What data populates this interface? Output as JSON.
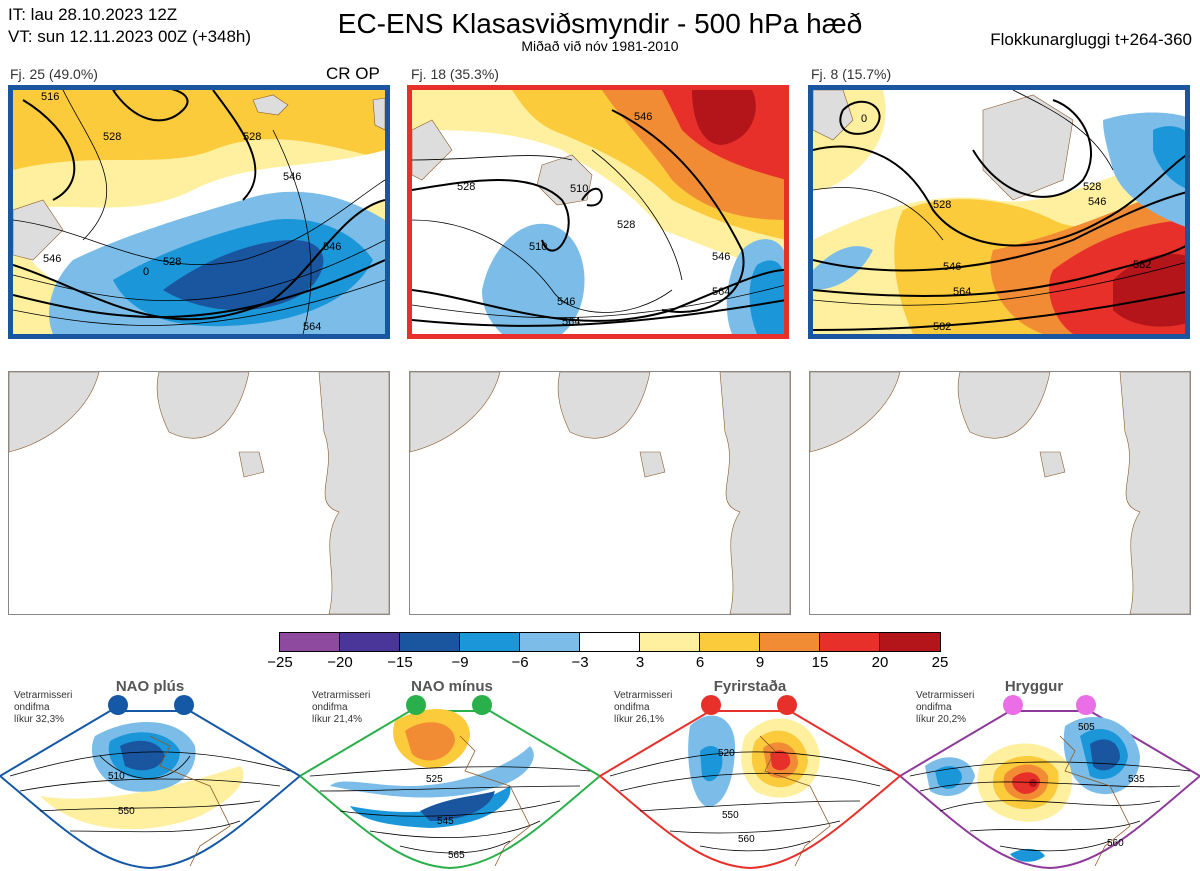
{
  "header": {
    "it_line": "IT: lau 28.10.2023 12Z",
    "vt_line": "VT: sun 12.11.2023 00Z  (+348h)",
    "title": "EC-ENS Klasasviðsmyndir - 500 hPa hæð",
    "subtitle": "Miðað við nóv 1981-2010",
    "window": "Flokkunargluggi t+264-360"
  },
  "panels": [
    {
      "label": "Fj. 25 (49.0%)",
      "tag": "CR OP",
      "border_color": "#1a56a0",
      "contours": [
        "516",
        "528",
        "528",
        "546",
        "546",
        "528",
        "0",
        "546",
        "564"
      ]
    },
    {
      "label": "Fj. 18 (35.3%)",
      "tag": "",
      "border_color": "#e8302a",
      "contours": [
        "528",
        "546",
        "510",
        "528",
        "510",
        "546",
        "546",
        "564",
        "564"
      ]
    },
    {
      "label": "Fj. 8 (15.7%)",
      "tag": "",
      "border_color": "#1a56a0",
      "contours": [
        "528",
        "528",
        "546",
        "546",
        "564",
        "582",
        "582",
        "0"
      ]
    }
  ],
  "colorbar": {
    "colors": [
      "#8e4a9e",
      "#4a3599",
      "#1a56a0",
      "#1b97d9",
      "#7bbde8",
      "#ffffff",
      "#fff0a0",
      "#fbcb3b",
      "#f28c34",
      "#e8302a",
      "#b3151a"
    ],
    "ticks": [
      "−25",
      "−20",
      "−15",
      "−9",
      "−6",
      "−3",
      "3",
      "6",
      "9",
      "15",
      "20",
      "25"
    ]
  },
  "regimes": [
    {
      "name": "NAO plús",
      "stats": [
        "Vetrarmisseri",
        "ondifma",
        "líkur 32,3%"
      ],
      "dot_color": "#1458a6",
      "border_color": "#1458a6",
      "contours": [
        "510",
        "550"
      ]
    },
    {
      "name": "NAO mínus",
      "stats": [
        "Vetrarmisseri",
        "ondifma",
        "líkur 21,4%"
      ],
      "dot_color": "#2ab04a",
      "border_color": "#2ab04a",
      "contours": [
        "525",
        "545",
        "565"
      ]
    },
    {
      "name": "Fyrirstaða",
      "stats": [
        "Vetrarmisseri",
        "ondifma",
        "líkur 26,1%"
      ],
      "dot_color": "#e8302a",
      "border_color": "#e8302a",
      "contours": [
        "520",
        "550",
        "560"
      ]
    },
    {
      "name": "Hryggur",
      "stats": [
        "Vetrarmisseri",
        "ondifma",
        "líkur 20,2%"
      ],
      "dot_color": "#ea6ee6",
      "border_color": "#8e3a9a",
      "contours": [
        "505",
        "535",
        "560"
      ]
    }
  ]
}
